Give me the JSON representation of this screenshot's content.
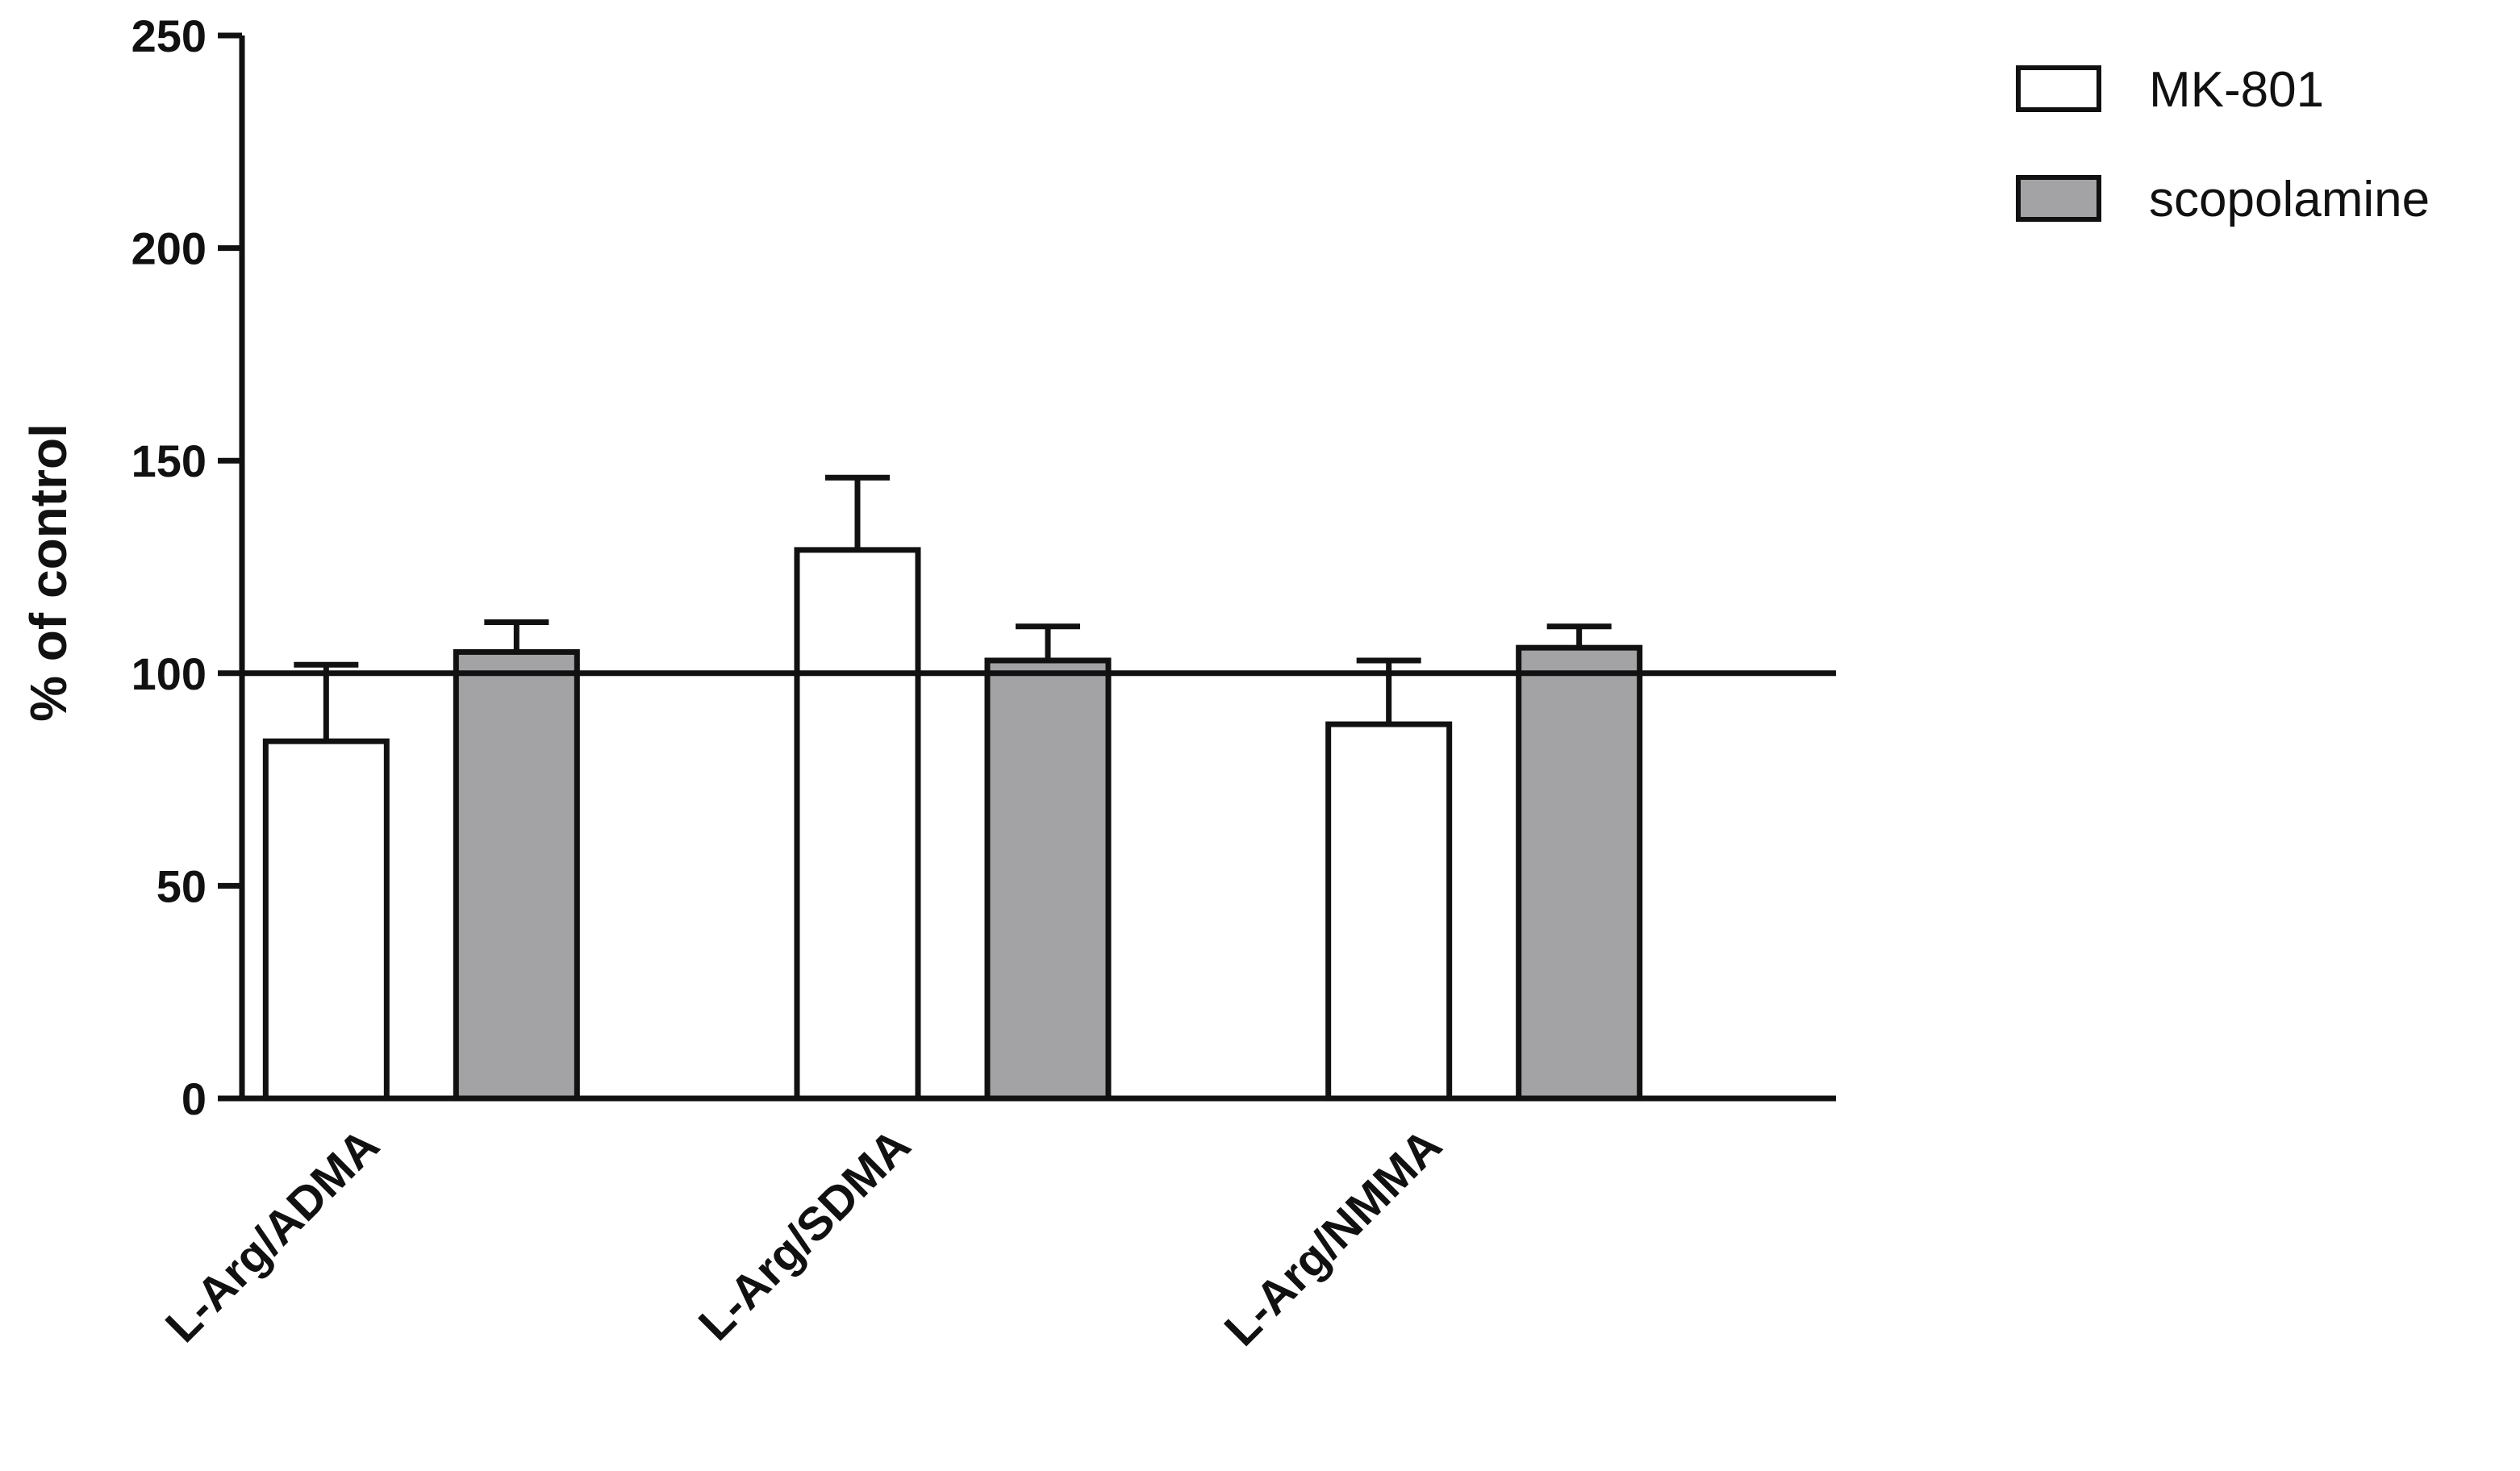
{
  "chart_data": {
    "type": "bar",
    "title": "",
    "xlabel": "",
    "ylabel": "% of control",
    "ylim": [
      0,
      250
    ],
    "yticks": [
      0,
      50,
      100,
      150,
      200,
      250
    ],
    "reference_line": 100,
    "categories": [
      "L-Arg/ADMA",
      "L-Arg/SDMA",
      "L-Arg/NMMA"
    ],
    "series": [
      {
        "name": "MK-801",
        "color": "#ffffff",
        "values": [
          84,
          129,
          88
        ],
        "errors": [
          18,
          17,
          15
        ]
      },
      {
        "name": "scopolamine",
        "color": "#a3a3a6",
        "values": [
          105,
          103,
          106
        ],
        "errors": [
          7,
          8,
          5
        ]
      }
    ],
    "legend": {
      "position": "top-right"
    },
    "grid": false
  }
}
